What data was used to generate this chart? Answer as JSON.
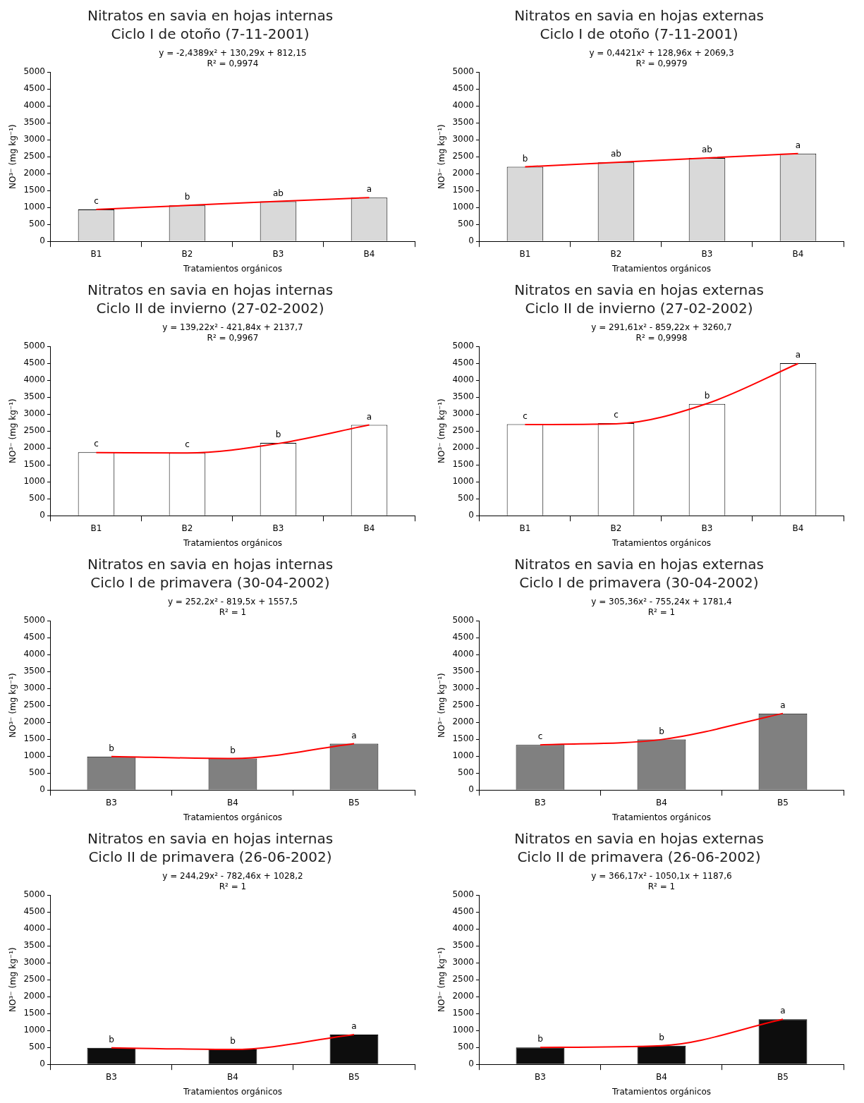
{
  "chart_data": [
    {
      "type": "bar",
      "title": "Nitratos en savia en hojas internas",
      "subtitle": "Ciclo I de otoño (7-11-2001)",
      "xlabel": "Tratamientos orgánicos",
      "ylabel": "NO³⁻ (mg kg⁻¹)",
      "categories": [
        "B1",
        "B2",
        "B3",
        "B4"
      ],
      "ylim": [
        0,
        5000
      ],
      "yticks": [
        0,
        500,
        1000,
        1500,
        2000,
        2500,
        3000,
        3500,
        4000,
        4500,
        5000
      ],
      "annotations": [
        "y = -2,4389x² + 130,29x + 812,15",
        "R² = 0,9974"
      ],
      "series": [
        {
          "color": "#d9d9d9",
          "values": [
            940,
            1060,
            1180,
            1290
          ],
          "value_labels": [
            "c",
            "b",
            "ab",
            "a"
          ]
        },
        {
          "type": "line",
          "color": "#ff0000",
          "values": [
            940,
            1060,
            1180,
            1290
          ]
        }
      ]
    },
    {
      "type": "bar",
      "title": "Nitratos en savia en hojas externas",
      "subtitle": "Ciclo I de otoño (7-11-2001)",
      "xlabel": "Tratamientos orgánicos",
      "ylabel": "NO³⁻ (mg kg⁻¹)",
      "categories": [
        "B1",
        "B2",
        "B3",
        "B4"
      ],
      "ylim": [
        0,
        5000
      ],
      "yticks": [
        0,
        500,
        1000,
        1500,
        2000,
        2500,
        3000,
        3500,
        4000,
        4500,
        5000
      ],
      "annotations": [
        "y = 0,4421x² + 128,96x + 2069,3",
        "R² = 0,9979"
      ],
      "series": [
        {
          "color": "#d9d9d9",
          "values": [
            2200,
            2330,
            2460,
            2590
          ],
          "value_labels": [
            "b",
            "ab",
            "ab",
            "a"
          ]
        },
        {
          "type": "line",
          "color": "#ff0000",
          "values": [
            2200,
            2330,
            2460,
            2590
          ]
        }
      ]
    },
    {
      "type": "bar",
      "title": "Nitratos en savia en hojas internas",
      "subtitle": "Ciclo II de invierno (27-02-2002)",
      "xlabel": "Tratamientos orgánicos",
      "ylabel": "NO³⁻ (mg kg⁻¹)",
      "categories": [
        "B1",
        "B2",
        "B3",
        "B4"
      ],
      "ylim": [
        0,
        5000
      ],
      "yticks": [
        0,
        500,
        1000,
        1500,
        2000,
        2500,
        3000,
        3500,
        4000,
        4500,
        5000
      ],
      "annotations": [
        "y = 139,22x² - 421,84x + 2137,7",
        "R² = 0,9967"
      ],
      "series": [
        {
          "color": "#ffffff",
          "values": [
            1870,
            1850,
            2150,
            2680
          ],
          "value_labels": [
            "c",
            "c",
            "b",
            "a"
          ]
        },
        {
          "type": "line",
          "color": "#ff0000",
          "values": [
            1860,
            1850,
            2130,
            2680
          ]
        }
      ]
    },
    {
      "type": "bar",
      "title": "Nitratos en savia en hojas externas",
      "subtitle": "Ciclo II de invierno (27-02-2002)",
      "xlabel": "Tratamientos orgánicos",
      "ylabel": "NO³⁻ (mg kg⁻¹)",
      "categories": [
        "B1",
        "B2",
        "B3",
        "B4"
      ],
      "ylim": [
        0,
        5000
      ],
      "yticks": [
        0,
        500,
        1000,
        1500,
        2000,
        2500,
        3000,
        3500,
        4000,
        4500,
        5000
      ],
      "annotations": [
        "y = 291,61x² - 859,22x + 3260,7",
        "R² = 0,9998"
      ],
      "series": [
        {
          "color": "#ffffff",
          "values": [
            2700,
            2730,
            3300,
            4500
          ],
          "value_labels": [
            "c",
            "c",
            "b",
            "a"
          ]
        },
        {
          "type": "line",
          "color": "#ff0000",
          "values": [
            2690,
            2710,
            3310,
            4490
          ]
        }
      ]
    },
    {
      "type": "bar",
      "title": "Nitratos en savia en hojas internas",
      "subtitle": "Ciclo I de primavera (30-04-2002)",
      "xlabel": "Tratamientos orgánicos",
      "ylabel": "NO³⁻ (mg kg⁻¹)",
      "categories": [
        "B3",
        "B4",
        "B5"
      ],
      "ylim": [
        0,
        5000
      ],
      "yticks": [
        0,
        500,
        1000,
        1500,
        2000,
        2500,
        3000,
        3500,
        4000,
        4500,
        5000
      ],
      "annotations": [
        "y = 252,2x² - 819,5x + 1557,5",
        "R² = 1"
      ],
      "series": [
        {
          "color": "#808080",
          "values": [
            990,
            930,
            1370
          ],
          "value_labels": [
            "b",
            "b",
            "a"
          ]
        },
        {
          "type": "line",
          "color": "#ff0000",
          "values": [
            990,
            930,
            1370
          ]
        }
      ]
    },
    {
      "type": "bar",
      "title": "Nitratos en savia en hojas externas",
      "subtitle": "Ciclo I de primavera (30-04-2002)",
      "xlabel": "Tratamientos orgánicos",
      "ylabel": "NO³⁻ (mg kg⁻¹)",
      "categories": [
        "B3",
        "B4",
        "B5"
      ],
      "ylim": [
        0,
        5000
      ],
      "yticks": [
        0,
        500,
        1000,
        1500,
        2000,
        2500,
        3000,
        3500,
        4000,
        4500,
        5000
      ],
      "annotations": [
        "y = 305,36x² - 755,24x + 1781,4",
        "R² = 1"
      ],
      "series": [
        {
          "color": "#808080",
          "values": [
            1330,
            1490,
            2260
          ],
          "value_labels": [
            "c",
            "b",
            "a"
          ]
        },
        {
          "type": "line",
          "color": "#ff0000",
          "values": [
            1330,
            1490,
            2260
          ]
        }
      ]
    },
    {
      "type": "bar",
      "title": "Nitratos en savia en hojas internas",
      "subtitle": "Ciclo II de primavera (26-06-2002)",
      "xlabel": "Tratamientos orgánicos",
      "ylabel": "NO³⁻ (mg kg⁻¹)",
      "categories": [
        "B3",
        "B4",
        "B5"
      ],
      "ylim": [
        0,
        5000
      ],
      "yticks": [
        0,
        500,
        1000,
        1500,
        2000,
        2500,
        3000,
        3500,
        4000,
        4500,
        5000
      ],
      "annotations": [
        "y = 244,29x² - 782,46x + 1028,2",
        "R² = 1"
      ],
      "series": [
        {
          "color": "#0d0d0d",
          "values": [
            490,
            440,
            880
          ],
          "value_labels": [
            "b",
            "b",
            "a"
          ]
        },
        {
          "type": "line",
          "color": "#ff0000",
          "values": [
            490,
            440,
            880
          ]
        }
      ]
    },
    {
      "type": "bar",
      "title": "Nitratos en savia en hojas externas",
      "subtitle": "Ciclo II de primavera (26-06-2002)",
      "xlabel": "Tratamientos orgánicos",
      "ylabel": "NO³⁻ (mg kg⁻¹)",
      "categories": [
        "B3",
        "B4",
        "B5"
      ],
      "ylim": [
        0,
        5000
      ],
      "yticks": [
        0,
        500,
        1000,
        1500,
        2000,
        2500,
        3000,
        3500,
        4000,
        4500,
        5000
      ],
      "annotations": [
        "y = 366,17x² - 1050,1x + 1187,6",
        "R² = 1"
      ],
      "series": [
        {
          "color": "#0d0d0d",
          "values": [
            500,
            550,
            1330
          ],
          "value_labels": [
            "b",
            "b",
            "a"
          ]
        },
        {
          "type": "line",
          "color": "#ff0000",
          "values": [
            500,
            550,
            1330
          ]
        }
      ]
    }
  ]
}
